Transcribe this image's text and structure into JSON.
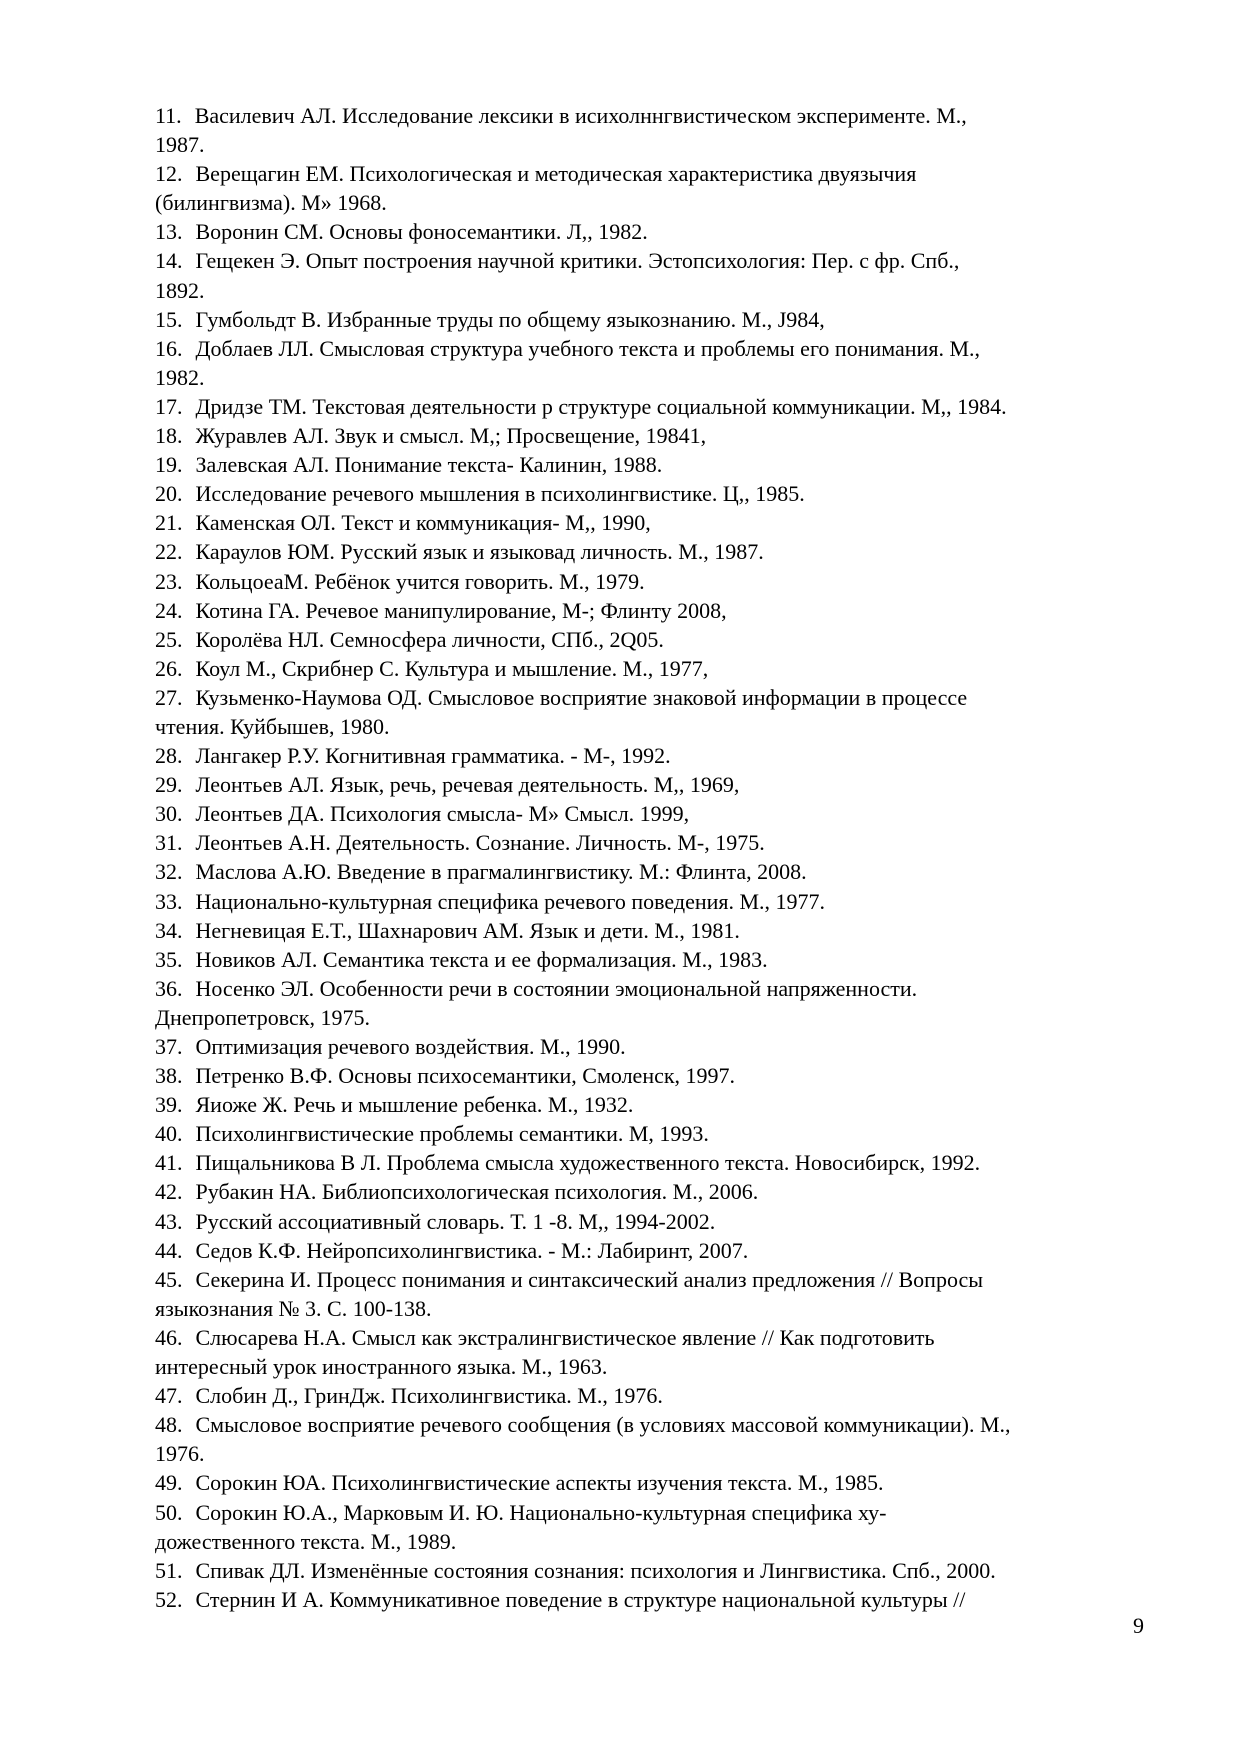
{
  "page": {
    "number": "9"
  },
  "bibliography": {
    "items": [
      {
        "num": "11.",
        "text": "Василевич АЛ. Исследование лексики в исихолннгвистическом эксперименте. М.,\n1987."
      },
      {
        "num": "12.",
        "text": "Верещагин ЕМ. Психологическая и методическая характеристика двуязычия\n(билингвизма). М» 1968."
      },
      {
        "num": "13.",
        "text": "Воронин СМ. Основы фоносемантики. Л,, 1982."
      },
      {
        "num": "14.",
        "text": "Гещекен Э. Опыт построения научной критики. Эстопсихология: Пер. с фр. Спб.,\n1892."
      },
      {
        "num": "15.",
        "text": "Гумбольдт В. Избранные труды по общему языкознанию. М., J984,"
      },
      {
        "num": "16.",
        "text": "Доблаев ЛЛ. Смысловая структура учебного текста и проблемы его понимания. М.,\n1982."
      },
      {
        "num": "17.",
        "text": "Дридзе ТМ. Текстовая деятельности р структуре социальной коммуникации. М,, 1984."
      },
      {
        "num": "18.",
        "text": "Журавлев АЛ. Звук и смысл. М,; Просвещение, 19841,"
      },
      {
        "num": "19.",
        "text": "Залевская АЛ. Понимание текста- Калинин, 1988."
      },
      {
        "num": "20.",
        "text": "Исследование речевого мышления в психолингвистике. Ц,, 1985."
      },
      {
        "num": "21.",
        "text": "Каменская ОЛ. Текст и коммуникация- М,, 1990,"
      },
      {
        "num": "22.",
        "text": "Караулов ЮМ. Русский язык и языковад личность. М., 1987."
      },
      {
        "num": "23.",
        "text": "КольцоеаМ. Ребёнок учится говорить. М., 1979."
      },
      {
        "num": "24.",
        "text": "Котина ГА. Речевое манипулирование, М-; Флинту 2008,"
      },
      {
        "num": "25.",
        "text": "Королёва НЛ. Семносфера личности, СПб., 2Q05."
      },
      {
        "num": "26.",
        "text": "Коул М., Скрибнер С. Культура и мышление. М., 1977,"
      },
      {
        "num": "27.",
        "text": "Кузьменко-Наумова ОД. Смысловое восприятие знаковой информации в процессе\nчтения. Куйбышев, 1980."
      },
      {
        "num": "28.",
        "text": "Лангакер Р.У. Когнитивная грамматика. - М-, 1992."
      },
      {
        "num": "29.",
        "text": "Леонтьев АЛ. Язык, речь, речевая деятельность. М,, 1969,"
      },
      {
        "num": "30.",
        "text": "Леонтьев ДА. Психология смысла- М» Смысл. 1999,"
      },
      {
        "num": "31.",
        "text": "Леонтьев А.Н. Деятельность. Сознание. Личность. М-, 1975."
      },
      {
        "num": "32.",
        "text": "Маслова А.Ю. Введение в прагмалингвистику. М.: Флинта, 2008."
      },
      {
        "num": "33.",
        "text": "Национально-культурная специфика речевого поведения. М., 1977."
      },
      {
        "num": "34.",
        "text": "Негневицая Е.Т., Шахнарович АМ. Язык и дети. М., 1981."
      },
      {
        "num": "35.",
        "text": "Новиков АЛ. Семантика текста и ее формализация. М., 1983."
      },
      {
        "num": "36.",
        "text": "Носенко ЭЛ. Особенности речи в состоянии эмоциональной напряженности.\nДнепропетровск, 1975."
      },
      {
        "num": "37.",
        "text": "Оптимизация речевого воздействия. М., 1990."
      },
      {
        "num": "38.",
        "text": "Петренко В.Ф. Основы психосемантики, Смоленск, 1997."
      },
      {
        "num": "39.",
        "text": "Яиоже Ж. Речь и мышление ребенка. М., 1932."
      },
      {
        "num": "40.",
        "text": "Психолингвистические проблемы семантики. М, 1993."
      },
      {
        "num": "41.",
        "text": "Пищальникова В Л. Проблема смысла художественного текста. Новосибирск, 1992."
      },
      {
        "num": "42.",
        "text": "Рубакин НА. Библиопсихологическая психология. М., 2006."
      },
      {
        "num": "43.",
        "text": "Русский ассоциативный словарь. Т. 1 -8. М,, 1994-2002."
      },
      {
        "num": "44.",
        "text": "Седов К.Ф. Нейропсихолингвистика. - М.: Лабиринт, 2007."
      },
      {
        "num": "45.",
        "text": "Секерина И. Процесс понимания и синтаксический анализ предложения // Вопросы\nязыкознания № 3. С. 100-138."
      },
      {
        "num": "46.",
        "text": "Слюсарева Н.А. Смысл как экстралингвистическое явление // Как подготовить\nинтересный урок иностранного языка. М., 1963."
      },
      {
        "num": "47.",
        "text": "Слобин Д., ГринДж. Психолингвистика. М., 1976."
      },
      {
        "num": "48.",
        "text": "Смысловое восприятие речевого сообщения (в условиях массовой коммуникации). М.,\n1976."
      },
      {
        "num": "49.",
        "text": "Сорокин ЮА. Психолингвистические аспекты изучения текста. М., 1985."
      },
      {
        "num": "50.",
        "text": "Сорокин Ю.А., Марковым И. Ю. Национально-культурная специфика ху-\nдожественного текста. М., 1989."
      },
      {
        "num": "51.",
        "text": "Спивак ДЛ. Изменённые состояния сознания: психология и Лингвистика. Спб., 2000."
      },
      {
        "num": "52.",
        "text": "Стернин И А. Коммуникативное поведение в структуре национальной культуры //"
      }
    ]
  }
}
